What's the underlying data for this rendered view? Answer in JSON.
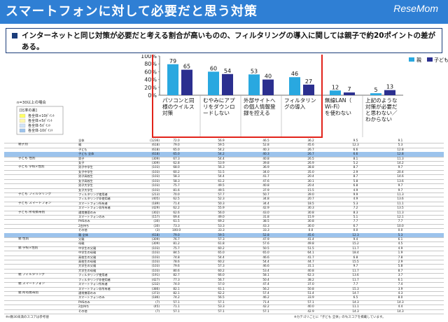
{
  "header": {
    "title": "スマートフォンに対して必要だと思う対策",
    "brand": "ReseMom"
  },
  "summary": {
    "text": "インターネットと同じ対策が必要だと考える割合が高いものの、フィルタリングの導入に関しては親子で約20ポイントの差がある。"
  },
  "legend_box": {
    "n_note": "n=30以上の場合",
    "title": "[比率の差]",
    "items": [
      "各全体+10ﾎﾟｲﾝﾄ",
      "各全体+5ﾎﾟｲﾝﾄ",
      "各全体-5ﾎﾟｲﾝﾄ",
      "各全体-10ﾎﾟｲﾝﾄ"
    ]
  },
  "chart_data": {
    "type": "bar",
    "categories": [
      "パソコンと同様のウイルス対策",
      "むやみにアプリをダウンロードしない",
      "外部サイトへの個人情報登録を控える",
      "フィルタリングの導入",
      "無線LAN（Wi-Fi）を使わない",
      "上記のような対策が必要だと思わない／わからない"
    ],
    "series": [
      {
        "name": "親",
        "values": [
          79,
          60,
          53,
          46,
          12,
          5
        ]
      },
      {
        "name": "子ども",
        "values": [
          65,
          54,
          40,
          27,
          7,
          13
        ]
      }
    ],
    "ylim": [
      0,
      100
    ],
    "yticks": [
      "0%",
      "20%",
      "40%",
      "60%",
      "80%",
      "100%"
    ],
    "colors": {
      "parent": "#29a8e0",
      "child": "#2b2f8f",
      "highlight": "#e2231a"
    }
  },
  "table": {
    "rows": [
      {
        "grp": "",
        "lbl": "全体",
        "n": "(1236)",
        "v": [
          "72.0",
          "56.9",
          "46.5",
          "36.2",
          "9.5",
          "9.1"
        ]
      },
      {
        "grp": "親子別",
        "lbl": "親",
        "n": "(618)",
        "v": [
          "79.0",
          "59.5",
          "52.8",
          "45.6",
          "12.3",
          "5.3"
        ]
      },
      {
        "grp": "",
        "lbl": "子ども",
        "n": "(618)",
        "v": [
          "65.0",
          "54.2",
          "40.3",
          "26.7",
          "6.6",
          "12.8"
        ]
      },
      {
        "grp": "",
        "lbl": "子ども 全体",
        "n": "(618)",
        "v": [
          "65.0",
          "54.2",
          "40.3",
          "26.7",
          "6.6",
          "12.8"
        ]
      },
      {
        "grp": "子ども 性別",
        "lbl": "男子",
        "n": "(309)",
        "v": [
          "67.3",
          "54.4",
          "40.8",
          "26.5",
          "8.1",
          "11.3"
        ]
      },
      {
        "grp": "",
        "lbl": "女子",
        "n": "(309)",
        "v": [
          "62.8",
          "53.9",
          "39.8",
          "26.9",
          "5.2",
          "14.2"
        ]
      },
      {
        "grp": "子ども 学校×性別",
        "lbl": "男子中学生",
        "n": "(103)",
        "v": [
          "68.0",
          "56.3",
          "36.9",
          "38.8",
          "8.7",
          "9.7"
        ]
      },
      {
        "grp": "",
        "lbl": "女子中学生",
        "n": "(103)",
        "v": [
          "60.2",
          "51.5",
          "34.0",
          "35.0",
          "2.9",
          "20.4"
        ]
      },
      {
        "grp": "",
        "lbl": "男子高校生",
        "n": "(103)",
        "v": [
          "58.3",
          "54.4",
          "41.7",
          "20.4",
          "8.7",
          "14.6"
        ]
      },
      {
        "grp": "",
        "lbl": "女子高校生",
        "n": "(103)",
        "v": [
          "58.3",
          "61.2",
          "47.6",
          "30.1",
          "5.8",
          "13.6"
        ]
      },
      {
        "grp": "",
        "lbl": "男子大学生",
        "n": "(103)",
        "v": [
          "75.7",
          "49.5",
          "40.8",
          "20.4",
          "6.8",
          "9.7"
        ]
      },
      {
        "grp": "",
        "lbl": "女子大学生",
        "n": "(103)",
        "v": [
          "81.6",
          "49.5",
          "37.9",
          "15.5",
          "4.9",
          "9.7"
        ]
      },
      {
        "grp": "子ども フィルタリング",
        "lbl": "フィルタリング使用者",
        "n": "(213)",
        "v": [
          "70.0",
          "57.7",
          "50.7",
          "39.0",
          "9.9",
          "11.3"
        ]
      },
      {
        "grp": "",
        "lbl": "フィルタリング非使用者",
        "n": "(405)",
        "v": [
          "62.5",
          "52.3",
          "34.8",
          "20.7",
          "4.9",
          "13.6"
        ]
      },
      {
        "grp": "子ども スマートフォン",
        "lbl": "スマートフォン所有者",
        "n": "(189)",
        "v": [
          "71.4",
          "50.3",
          "34.4",
          "18.5",
          "5.3",
          "11.1"
        ]
      },
      {
        "grp": "",
        "lbl": "スマートフォン非所有者",
        "n": "(429)",
        "v": [
          "62.2",
          "55.9",
          "42.9",
          "30.3",
          "7.2",
          "13.5"
        ]
      },
      {
        "grp": "子ども 所有携帯別",
        "lbl": "通常携帯のみ",
        "n": "(302)",
        "v": [
          "62.6",
          "56.0",
          "43.0",
          "30.8",
          "8.3",
          "11.3"
        ]
      },
      {
        "grp": "",
        "lbl": "スマートフォンのみ",
        "n": "(157)",
        "v": [
          "69.4",
          "49.0",
          "31.8",
          "15.9",
          "5.1",
          "12.1"
        ]
      },
      {
        "grp": "",
        "lbl": "PHSのみ",
        "n": "(30)",
        "v": [
          "61.5",
          "69.2",
          "38.5",
          "30.8",
          "7.7",
          "7.7"
        ]
      },
      {
        "grp": "",
        "lbl": "2台持ち",
        "n": "(30)",
        "v": [
          "73.3",
          "53.3",
          "43.3",
          "30.0",
          "6.7",
          "10.0"
        ]
      },
      {
        "grp": "",
        "lbl": "その他",
        "n": "(3)",
        "v": [
          "100.0",
          "33.3",
          "33.3",
          "0.0",
          "0.0",
          "0.0"
        ]
      },
      {
        "grp": "",
        "lbl": "親 全体",
        "n": "(618)",
        "v": [
          "79.0",
          "59.5",
          "52.8",
          "45.6",
          "12.3",
          "5.3"
        ]
      },
      {
        "grp": "親 性別",
        "lbl": "父親",
        "n": "(309)",
        "v": [
          "76.7",
          "57.3",
          "47.9",
          "41.4",
          "9.4",
          "6.1"
        ]
      },
      {
        "grp": "",
        "lbl": "母親",
        "n": "(309)",
        "v": [
          "81.2",
          "61.8",
          "57.6",
          "49.8",
          "15.2",
          "4.5"
        ]
      },
      {
        "grp": "親 学校×性別",
        "lbl": "中学生の父親",
        "n": "(103)",
        "v": [
          "75.7",
          "60.2",
          "50.5",
          "51.5",
          "11.7",
          "4.9"
        ]
      },
      {
        "grp": "",
        "lbl": "中学生の母親",
        "n": "(103)",
        "v": [
          "84.5",
          "65.0",
          "65.0",
          "64.1",
          "18.4",
          "1.9"
        ]
      },
      {
        "grp": "",
        "lbl": "高校生の父親",
        "n": "(103)",
        "v": [
          "74.8",
          "54.4",
          "46.6",
          "41.7",
          "6.8",
          "7.8"
        ]
      },
      {
        "grp": "",
        "lbl": "高校生の母親",
        "n": "(103)",
        "v": [
          "78.6",
          "60.2",
          "54.4",
          "44.7",
          "15.5",
          "2.9"
        ]
      },
      {
        "grp": "",
        "lbl": "大学生の父親",
        "n": "(103)",
        "v": [
          "79.6",
          "57.3",
          "46.6",
          "31.1",
          "9.7",
          "5.8"
        ]
      },
      {
        "grp": "",
        "lbl": "大学生の母親",
        "n": "(103)",
        "v": [
          "80.6",
          "60.2",
          "53.4",
          "40.8",
          "11.7",
          "8.7"
        ]
      },
      {
        "grp": "親 フィルタリング",
        "lbl": "フィルタリング使用者",
        "n": "(191)",
        "v": [
          "82.7",
          "66.0",
          "58.1",
          "62.3",
          "13.6",
          "3.7"
        ]
      },
      {
        "grp": "",
        "lbl": "フィルタリング非使用者",
        "n": "(427)",
        "v": [
          "77.3",
          "56.7",
          "50.4",
          "38.2",
          "11.7",
          "6.1"
        ]
      },
      {
        "grp": "親 スマートフォン",
        "lbl": "スマートフォン所有者",
        "n": "(232)",
        "v": [
          "74.0",
          "57.0",
          "47.4",
          "37.0",
          "7.7",
          "7.4"
        ]
      },
      {
        "grp": "",
        "lbl": "スマートフォン非所有者",
        "n": "(386)",
        "v": [
          "82.1",
          "61.1",
          "56.2",
          "50.8",
          "15.3",
          "3.9"
        ]
      },
      {
        "grp": "親 所有携帯別",
        "lbl": "通常携帯のみ",
        "n": "(373)",
        "v": [
          "82.1",
          "62.2",
          "57.4",
          "51.4",
          "14.7",
          "4.3"
        ]
      },
      {
        "grp": "",
        "lbl": "スマートフォンのみ",
        "n": "(186)",
        "v": [
          "74.2",
          "56.5",
          "46.2",
          "33.9",
          "6.5",
          "8.0"
        ]
      },
      {
        "grp": "",
        "lbl": "PHSのみ",
        "n": "(7)",
        "v": [
          "57.1",
          "57.1",
          "71.4",
          "57.1",
          "14.3",
          "14.3"
        ]
      },
      {
        "grp": "",
        "lbl": "2台持ち",
        "n": "(45)",
        "v": [
          "71.1",
          "53.3",
          "42.2",
          "40.0",
          "11.1",
          "4.4"
        ]
      },
      {
        "grp": "",
        "lbl": "その他",
        "n": "(7)",
        "v": [
          "57.1",
          "57.1",
          "57.1",
          "42.9",
          "14.3",
          "14.3"
        ]
      }
    ],
    "highlights": {
      "3": "hl-blue",
      "21": "hl-blue"
    }
  },
  "footnote": "※n数30未満のスコアは参考値",
  "footnote2": "※カテゴリごとに「子ども 全体」の％スコアを掲載しています。"
}
